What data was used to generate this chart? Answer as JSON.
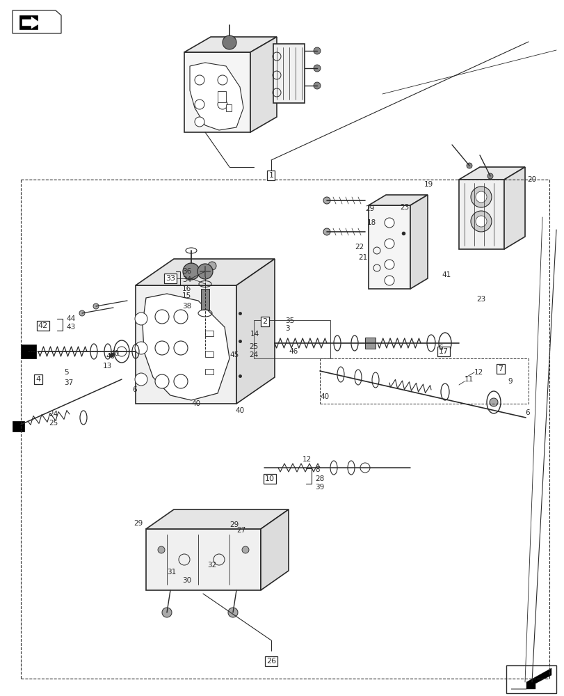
{
  "bg_color": "#ffffff",
  "line_color": "#2a2a2a",
  "fig_width": 8.12,
  "fig_height": 10.0,
  "dpi": 100
}
